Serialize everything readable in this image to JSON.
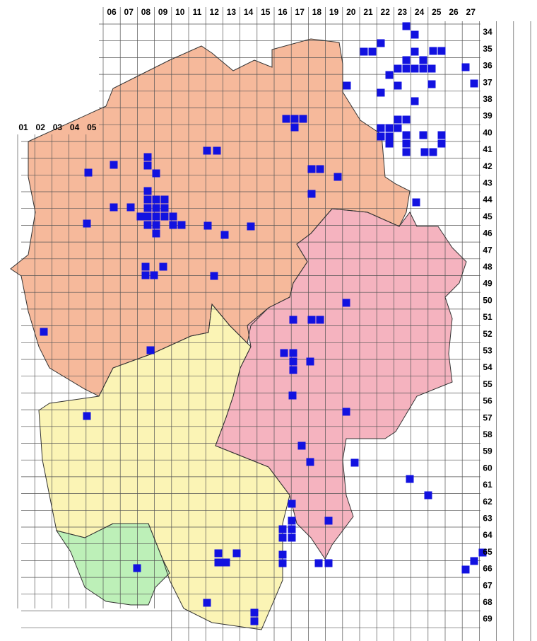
{
  "map": {
    "top_columns": [
      "06",
      "07",
      "08",
      "09",
      "10",
      "11",
      "12",
      "13",
      "14",
      "15",
      "16",
      "17",
      "18",
      "19",
      "20",
      "21",
      "22",
      "23",
      "24",
      "25",
      "26",
      "27"
    ],
    "west_columns": [
      "01",
      "02",
      "03",
      "04",
      "05"
    ],
    "rows": [
      "34",
      "35",
      "36",
      "37",
      "38",
      "39",
      "40",
      "41",
      "42",
      "43",
      "44",
      "45",
      "46",
      "47",
      "48",
      "49",
      "50",
      "51",
      "52",
      "53",
      "54",
      "55",
      "56",
      "57",
      "58",
      "59",
      "60",
      "61",
      "62",
      "63",
      "64",
      "65",
      "66",
      "67",
      "68",
      "69"
    ]
  }
}
